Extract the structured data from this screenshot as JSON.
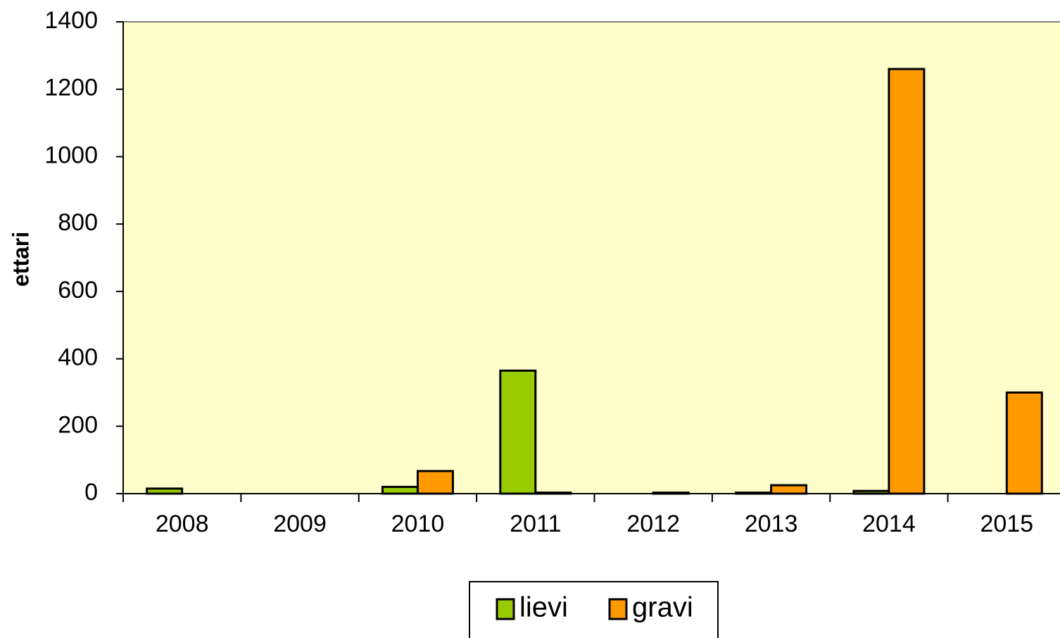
{
  "chart_data": {
    "type": "bar",
    "y_label": "ettari",
    "categories": [
      "2008",
      "2009",
      "2010",
      "2011",
      "2012",
      "2013",
      "2014",
      "2015"
    ],
    "series": [
      {
        "name": "lievi",
        "color": "#99cc00",
        "values": [
          15,
          0,
          20,
          365,
          0,
          3,
          8,
          0
        ]
      },
      {
        "name": "gravi",
        "color": "#ff9900",
        "values": [
          0,
          0,
          67,
          3,
          3,
          25,
          1260,
          300
        ]
      }
    ],
    "ylim": [
      0,
      1400
    ],
    "yticks": [
      0,
      200,
      400,
      600,
      800,
      1000,
      1200,
      1400
    ],
    "grid": false,
    "legend": "bottom",
    "plot_background": "#ffffcc"
  }
}
